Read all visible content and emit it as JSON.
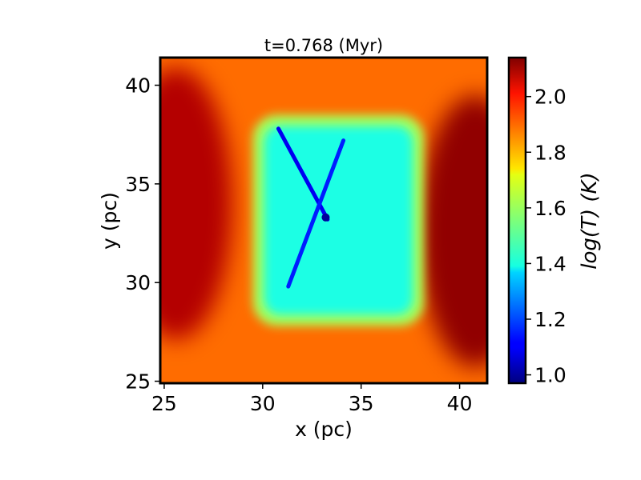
{
  "chart_data": {
    "type": "heatmap",
    "title": "t=0.768 (Myr)",
    "xlabel": "x (pc)",
    "ylabel": "y (pc)",
    "xlim": [
      24.8,
      41.4
    ],
    "ylim": [
      24.9,
      41.4
    ],
    "xticks": [
      25,
      30,
      35,
      40
    ],
    "yticks": [
      25,
      30,
      35,
      40
    ],
    "colorbar": {
      "label": "log(T) (K)",
      "colormap": "jet",
      "range": [
        0.97,
        2.14
      ],
      "ticks": [
        1.0,
        1.2,
        1.4,
        1.6,
        1.8,
        2.0
      ]
    },
    "field": {
      "description_units": "log10 temperature",
      "background": 1.87,
      "cold_region": {
        "x_range": [
          29.5,
          38.2
        ],
        "y_range": [
          27.8,
          38.5
        ],
        "value": 1.44
      },
      "hot_regions": [
        {
          "x": 25.6,
          "y": 34.0,
          "value": 2.08
        },
        {
          "x": 40.8,
          "y": 32.6,
          "value": 2.12
        }
      ],
      "filament": {
        "from": [
          30.8,
          37.8
        ],
        "to": [
          33.3,
          33.2
        ],
        "value": 1.1
      },
      "filament_2": {
        "from": [
          34.1,
          37.2
        ],
        "to": [
          31.3,
          29.8
        ],
        "value": 1.15
      },
      "core": {
        "x": 33.2,
        "y": 33.3,
        "value": 1.0
      }
    }
  }
}
